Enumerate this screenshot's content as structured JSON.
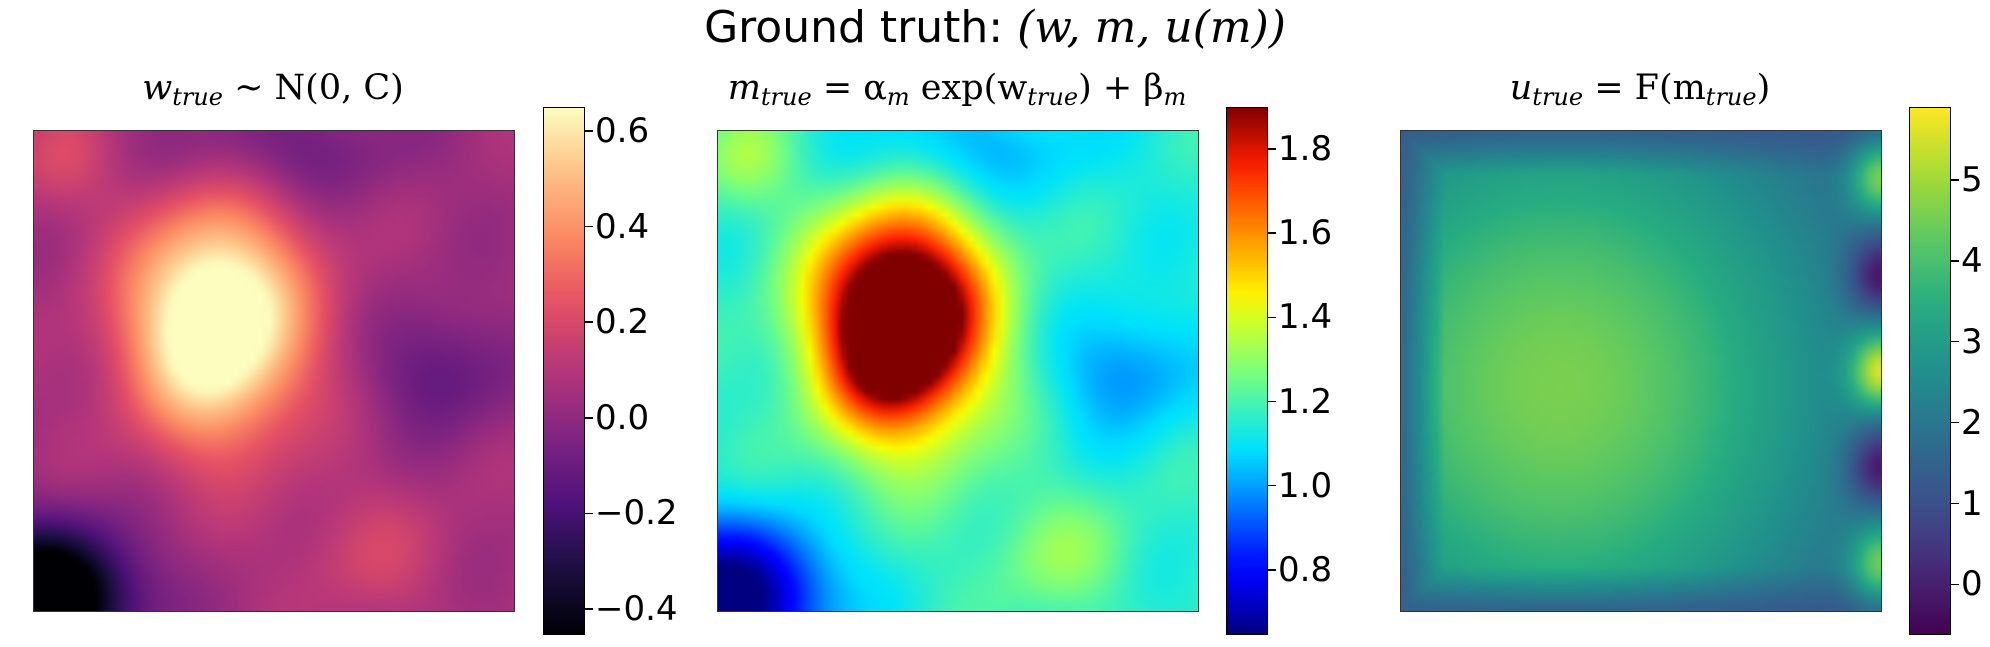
{
  "figure": {
    "suptitle_prefix": "Ground truth: ",
    "suptitle_math": "(w, m, u(m))"
  },
  "chart_data": [
    {
      "type": "heatmap",
      "title": "w_true ~ N(0, C)",
      "title_parts": {
        "var": "w",
        "sub": "true",
        "rest": " ~ N(0, C)"
      },
      "colormap": "magma",
      "colorbar": {
        "min": -0.45,
        "max": 0.65,
        "ticks": [
          -0.4,
          -0.2,
          0.0,
          0.2,
          0.4,
          0.6
        ],
        "tick_labels": [
          "−0.4",
          "−0.2",
          "0.0",
          "0.2",
          "0.4",
          "0.6"
        ]
      },
      "field_description": "Gaussian random field; peak near upper-left-center, minimum in bottom-left corner",
      "features": [
        {
          "cx": 0.38,
          "cy": 0.4,
          "amp": 0.82,
          "sx": 0.13,
          "sy": 0.17
        },
        {
          "cx": 0.03,
          "cy": 0.97,
          "amp": -0.75,
          "sx": 0.12,
          "sy": 0.1
        },
        {
          "cx": 0.85,
          "cy": 0.5,
          "amp": -0.18,
          "sx": 0.1,
          "sy": 0.09
        },
        {
          "cx": 0.5,
          "cy": 0.04,
          "amp": -0.15,
          "sx": 0.18,
          "sy": 0.08
        },
        {
          "cx": 0.7,
          "cy": 0.88,
          "amp": 0.12,
          "sx": 0.12,
          "sy": 0.1
        },
        {
          "cx": 0.05,
          "cy": 0.05,
          "amp": 0.14,
          "sx": 0.08,
          "sy": 0.08
        }
      ],
      "baseline": 0.05
    },
    {
      "type": "heatmap",
      "title": "m_true = α_m exp(w_true) + β_m",
      "title_parts": {
        "var": "m",
        "sub": "true",
        "mid1": " = α",
        "sub2": "m",
        "mid2": " exp(w",
        "sub3": "true",
        "mid3": ") + β",
        "sub4": "m"
      },
      "colormap": "jet",
      "colorbar": {
        "min": 0.65,
        "max": 1.9,
        "ticks": [
          0.8,
          1.0,
          1.2,
          1.4,
          1.6,
          1.8
        ],
        "tick_labels": [
          "0.8",
          "1.0",
          "1.2",
          "1.4",
          "1.6",
          "1.8"
        ]
      },
      "field_description": "m = exp(w) + 0.1 of the field to the left"
    },
    {
      "type": "heatmap",
      "title": "u_true = F(m_true)",
      "title_parts": {
        "var": "u",
        "sub": "true",
        "mid": " = F(m",
        "sub2": "true",
        "end": ")"
      },
      "colormap": "viridis",
      "colorbar": {
        "min": -0.6,
        "max": 5.9,
        "ticks": [
          0,
          1,
          2,
          3,
          4,
          5
        ],
        "tick_labels": [
          "0",
          "1",
          "2",
          "3",
          "4",
          "5"
        ]
      },
      "field_description": "PDE state; smooth hump centered left-center peaking near 4.5, decaying to ~1 at edges; right boundary alternating sources/sinks",
      "boundary_spots": [
        {
          "cy": 0.1,
          "value": 4.6
        },
        {
          "cy": 0.3,
          "value": -0.2
        },
        {
          "cy": 0.5,
          "value": 5.6
        },
        {
          "cy": 0.7,
          "value": -0.1
        },
        {
          "cy": 0.9,
          "value": 4.5
        }
      ]
    }
  ]
}
